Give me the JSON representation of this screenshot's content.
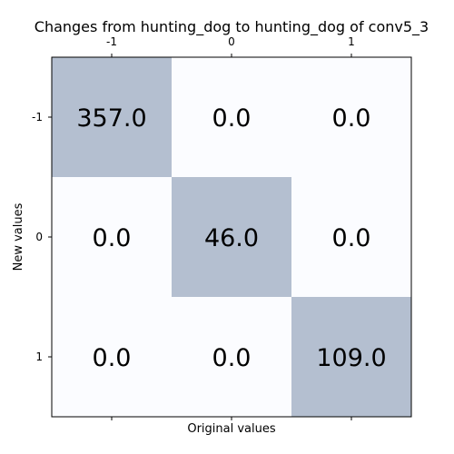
{
  "chart_data": {
    "type": "heatmap",
    "title": "Changes from hunting_dog to hunting_dog of conv5_3",
    "xlabel": "Original values",
    "ylabel": "New values",
    "x_categories": [
      "-1",
      "0",
      "1"
    ],
    "y_categories": [
      "-1",
      "0",
      "1"
    ],
    "values": [
      [
        357.0,
        0.0,
        0.0
      ],
      [
        0.0,
        46.0,
        0.0
      ],
      [
        0.0,
        0.0,
        109.0
      ]
    ],
    "value_labels": [
      [
        "357.0",
        "0.0",
        "0.0"
      ],
      [
        "0.0",
        "46.0",
        "0.0"
      ],
      [
        "0.0",
        "0.0",
        "109.0"
      ]
    ],
    "x_ticks_position": "top",
    "grid": false,
    "colors": {
      "high": "#b4bfd0",
      "low": "#fbfcff",
      "frame": "#000000"
    }
  }
}
